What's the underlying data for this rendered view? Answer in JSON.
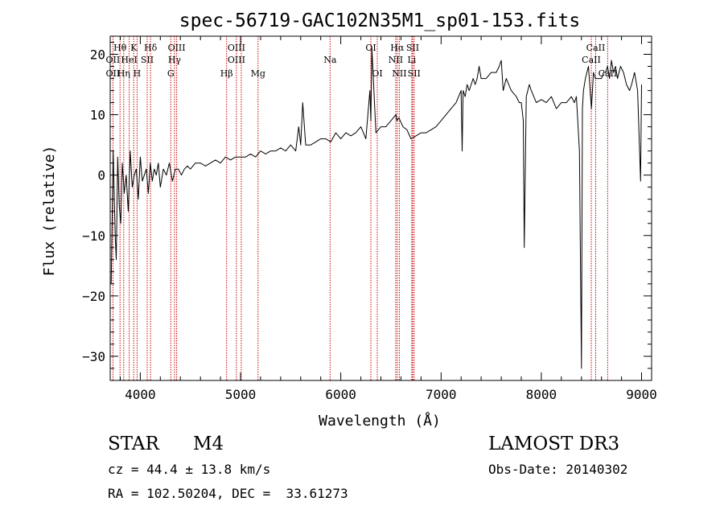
{
  "chart_data": {
    "type": "line",
    "title": "spec-56719-GAC102N35M1_sp01-153.fits",
    "xlabel": "Wavelength (Å)",
    "ylabel": "Flux (relative)",
    "xlim": [
      3700,
      9100
    ],
    "ylim": [
      -34,
      23
    ],
    "xticks": [
      4000,
      5000,
      6000,
      7000,
      8000,
      9000
    ],
    "yticks": [
      -30,
      -20,
      -10,
      0,
      10,
      20
    ],
    "line_color": "#000000",
    "marker_color": "#cc0000",
    "series": [
      {
        "name": "flux",
        "x": [
          3710,
          3730,
          3750,
          3760,
          3775,
          3790,
          3805,
          3820,
          3840,
          3860,
          3880,
          3900,
          3920,
          3940,
          3960,
          3980,
          4000,
          4020,
          4040,
          4060,
          4080,
          4100,
          4120,
          4140,
          4160,
          4180,
          4200,
          4230,
          4260,
          4290,
          4320,
          4350,
          4380,
          4410,
          4440,
          4470,
          4500,
          4550,
          4600,
          4650,
          4700,
          4750,
          4800,
          4850,
          4900,
          4950,
          5000,
          5050,
          5100,
          5150,
          5200,
          5250,
          5300,
          5350,
          5400,
          5450,
          5500,
          5550,
          5580,
          5600,
          5620,
          5650,
          5700,
          5750,
          5800,
          5850,
          5900,
          5950,
          6000,
          6050,
          6100,
          6150,
          6200,
          6250,
          6290,
          6300,
          6310,
          6350,
          6400,
          6450,
          6500,
          6550,
          6560,
          6580,
          6620,
          6660,
          6700,
          6750,
          6800,
          6850,
          6900,
          6950,
          7000,
          7050,
          7100,
          7150,
          7200,
          7210,
          7220,
          7240,
          7260,
          7280,
          7300,
          7320,
          7340,
          7360,
          7380,
          7400,
          7450,
          7500,
          7550,
          7580,
          7600,
          7620,
          7650,
          7700,
          7750,
          7780,
          7800,
          7820,
          7830,
          7850,
          7880,
          7900,
          7950,
          8000,
          8050,
          8100,
          8150,
          8200,
          8250,
          8300,
          8330,
          8350,
          8380,
          8400,
          8410,
          8420,
          8440,
          8470,
          8500,
          8520,
          8540,
          8560,
          8580,
          8600,
          8620,
          8640,
          8660,
          8680,
          8700,
          8720,
          8740,
          8760,
          8790,
          8820,
          8850,
          8880,
          8900,
          8930,
          8960,
          8990,
          9000
        ],
        "y": [
          -18,
          4,
          -10,
          -14,
          3,
          -5,
          -8,
          2,
          -3,
          0,
          -6,
          4,
          -2,
          0,
          1,
          -4,
          3,
          -1,
          0,
          1,
          -3,
          2,
          -1,
          1,
          0,
          2,
          -2,
          1,
          0,
          2,
          -1,
          1,
          1,
          0,
          1,
          1.5,
          1,
          2,
          2,
          1.5,
          2,
          2.5,
          2,
          3,
          2.5,
          3,
          3,
          3,
          3.5,
          3,
          4,
          3.5,
          4,
          4,
          4.5,
          4,
          5,
          4,
          8,
          5,
          12,
          5,
          5,
          5.5,
          6,
          6,
          5.5,
          7,
          6,
          7,
          6.5,
          7,
          8,
          6,
          14,
          9,
          21,
          7,
          8,
          8,
          9,
          10,
          9,
          9.5,
          8,
          7.5,
          6,
          6.5,
          7,
          7,
          7.5,
          8,
          9,
          10,
          11,
          12,
          14,
          4,
          14,
          13,
          15,
          14,
          15,
          16,
          15,
          16,
          18,
          16,
          16,
          17,
          17,
          18,
          19,
          14,
          16,
          14,
          13,
          12,
          12,
          9,
          -12,
          13,
          15,
          14,
          12,
          12.5,
          12,
          13,
          11,
          12,
          12,
          13,
          12,
          13,
          4,
          -32,
          11,
          14,
          16,
          18,
          11,
          17,
          16,
          16,
          16,
          16,
          17,
          17,
          18,
          16,
          19,
          17,
          18,
          16,
          18,
          17,
          15,
          14,
          15,
          17,
          14,
          -1,
          15
        ]
      }
    ],
    "lines": [
      {
        "label": "Hθ",
        "wl": 3798,
        "row": 1
      },
      {
        "label": "OII",
        "wl": 3727,
        "row": 2
      },
      {
        "label": "OII",
        "wl": 3727,
        "row": 3
      },
      {
        "label": "Hη",
        "wl": 3835,
        "row": 3
      },
      {
        "label": "K",
        "wl": 3934,
        "row": 1
      },
      {
        "label": "HeI",
        "wl": 3889,
        "row": 2
      },
      {
        "label": "H",
        "wl": 3968,
        "row": 3
      },
      {
        "label": "SII",
        "wl": 4069,
        "row": 2
      },
      {
        "label": "Hδ",
        "wl": 4102,
        "row": 1
      },
      {
        "label": "OIII",
        "wl": 4363,
        "row": 1
      },
      {
        "label": "Hγ",
        "wl": 4341,
        "row": 2
      },
      {
        "label": "G",
        "wl": 4304,
        "row": 3
      },
      {
        "label": "OIII",
        "wl": 4959,
        "row": 1
      },
      {
        "label": "OIII",
        "wl": 4959,
        "row": 2
      },
      {
        "label": "Hβ",
        "wl": 4861,
        "row": 3
      },
      {
        "label": "Mg",
        "wl": 5175,
        "row": 3
      },
      {
        "label": "Na",
        "wl": 5893,
        "row": 2
      },
      {
        "label": "OI",
        "wl": 6300,
        "row": 1
      },
      {
        "label": "OI",
        "wl": 6364,
        "row": 3
      },
      {
        "label": "Hα",
        "wl": 6563,
        "row": 1
      },
      {
        "label": "SII",
        "wl": 6717,
        "row": 1
      },
      {
        "label": "NII",
        "wl": 6548,
        "row": 2
      },
      {
        "label": "Li",
        "wl": 6708,
        "row": 2
      },
      {
        "label": "NII",
        "wl": 6584,
        "row": 3
      },
      {
        "label": "SII",
        "wl": 6731,
        "row": 3
      },
      {
        "label": "CaII",
        "wl": 8542,
        "row": 1
      },
      {
        "label": "CaII",
        "wl": 8498,
        "row": 2
      },
      {
        "label": "CaII",
        "wl": 8662,
        "row": 3
      }
    ],
    "line_positions": [
      3727,
      3798,
      3835,
      3889,
      3934,
      3968,
      4069,
      4102,
      4304,
      4341,
      4363,
      4861,
      4959,
      5007,
      5175,
      5893,
      6300,
      6364,
      6548,
      6563,
      6584,
      6708,
      6717,
      6731,
      8498,
      8542,
      8662
    ]
  },
  "info": {
    "object_class": "STAR",
    "subclass": "M4",
    "survey": "LAMOST DR3",
    "cz": "cz = 44.4 ± 13.8 km/s",
    "obs_date": "Obs-Date: 20140302",
    "coords": "RA = 102.50204, DEC =  33.61273"
  }
}
